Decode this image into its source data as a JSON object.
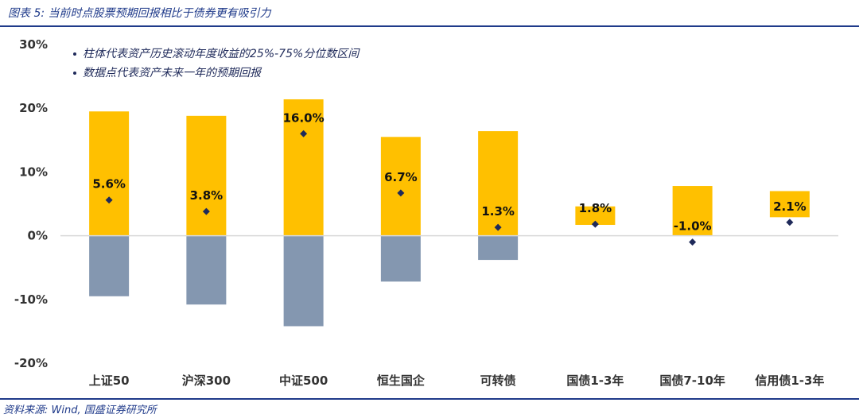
{
  "header": {
    "title": "图表 5:  当前时点股票预期回报相比于债券更有吸引力"
  },
  "footer": {
    "source": "资料来源: Wind, 国盛证券研究所"
  },
  "legend": {
    "items": [
      "柱体代表资产历史滚动年度收益的25%-75%分位数区间",
      "数据点代表资产未来一年的预期回报"
    ]
  },
  "colors": {
    "band_pos": "#FFC000",
    "band_neg": "#8497B0",
    "point": "#1F2A5A",
    "title": "#1F3A8A"
  },
  "chart_data": {
    "type": "bar",
    "categories": [
      "上证50",
      "沪深300",
      "中证500",
      "恒生国企",
      "可转债",
      "国债1-3年",
      "国债7-10年",
      "信用债1-3年"
    ],
    "range_low": [
      -9.5,
      -10.8,
      -14.2,
      -7.2,
      -3.8,
      1.7,
      0,
      2.9
    ],
    "range_high": [
      19.5,
      18.8,
      21.4,
      15.5,
      16.4,
      4.6,
      7.8,
      7.0
    ],
    "expected": [
      5.6,
      3.8,
      16.0,
      6.7,
      1.3,
      1.8,
      -1.0,
      2.1
    ],
    "expected_labels": [
      "5.6%",
      "3.8%",
      "16.0%",
      "6.7%",
      "1.3%",
      "1.8%",
      "-1.0%",
      "2.1%"
    ],
    "yticks": [
      30,
      20,
      10,
      0,
      -10,
      -20
    ],
    "ytick_labels": [
      "30%",
      "20%",
      "10%",
      "0%",
      "-10%",
      "-20%"
    ],
    "ylim": [
      -20,
      30
    ],
    "grid": false
  }
}
